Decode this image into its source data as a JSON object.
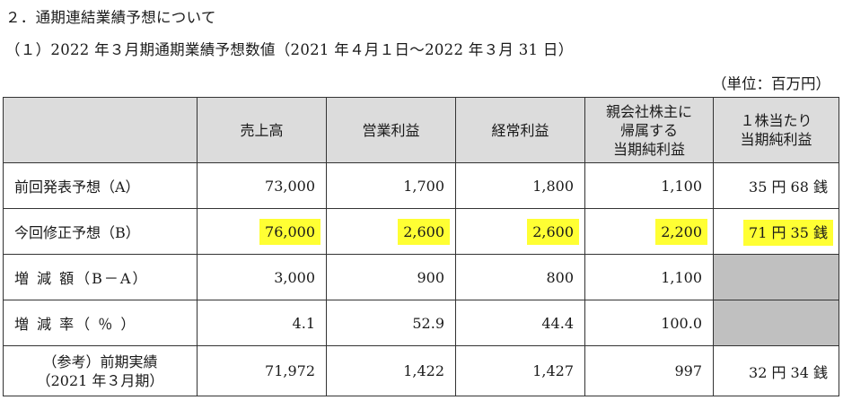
{
  "heading": "２．通期連結業績予想について",
  "subheading": "（１）2022 年３月期通期業績予想数値（2021 年４月１日～2022 年３月 31 日）",
  "unit": "（単位：百万円）",
  "table": {
    "columns": [
      {
        "lines": [
          "売上高"
        ]
      },
      {
        "lines": [
          "営業利益"
        ]
      },
      {
        "lines": [
          "経常利益"
        ]
      },
      {
        "lines": [
          "親会社株主に",
          "帰属する",
          "当期純利益"
        ]
      },
      {
        "lines": [
          "１株当たり",
          "当期純利益"
        ]
      }
    ],
    "rows": [
      {
        "label": [
          "前回発表予想（A）"
        ],
        "values": [
          "73,000",
          "1,700",
          "1,800",
          "1,100",
          "35 円 68 銭"
        ]
      },
      {
        "label": [
          "今回修正予想（B）"
        ],
        "values": [
          "76,000",
          "2,600",
          "2,600",
          "2,200",
          "71 円 35 銭"
        ],
        "highlighted": true
      },
      {
        "label": [
          "増 減 額（B－A）"
        ],
        "values": [
          "3,000",
          "900",
          "800",
          "1,100",
          ""
        ]
      },
      {
        "label": [
          "増 減 率（ ％ ）"
        ],
        "values": [
          "4.1",
          "52.9",
          "44.4",
          "100.0",
          ""
        ]
      },
      {
        "label": [
          "（参考）前期実績",
          "（2021 年３月期）"
        ],
        "values": [
          "71,972",
          "1,422",
          "1,427",
          "997",
          "32 円 34 銭"
        ]
      }
    ]
  },
  "colors": {
    "highlight": "#ffff33",
    "header_bg": "#dcdcdc",
    "blank_cell": "#c0c0c0"
  }
}
